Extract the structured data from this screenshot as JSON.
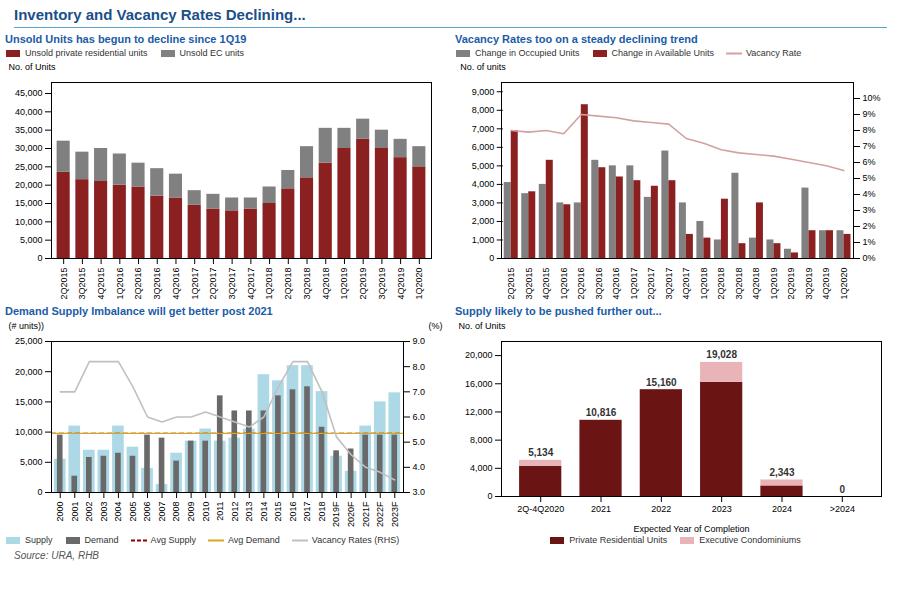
{
  "title": "Inventory and Vacancy Rates Declining...",
  "caption": "Source: URA, RHB",
  "chart_data": [
    {
      "type": "bar",
      "title": "Unsold Units has begun to decline since 1Q19",
      "stacked": true,
      "grid": false,
      "legend": "upper left",
      "ylabel": "No. of Units",
      "categories": [
        "2Q2015",
        "3Q2015",
        "4Q2015",
        "1Q2016",
        "2Q2016",
        "3Q2016",
        "4Q2016",
        "1Q2017",
        "2Q2017",
        "3Q2017",
        "4Q2017",
        "1Q2018",
        "2Q2018",
        "3Q2018",
        "4Q2018",
        "1Q2019",
        "2Q2019",
        "3Q2019",
        "4Q2019",
        "1Q2020"
      ],
      "series": [
        {
          "name": "Unsold private residential units",
          "color": "#8B2020",
          "values": [
            23500,
            21500,
            21000,
            20000,
            19500,
            17000,
            16500,
            14500,
            13500,
            13000,
            13500,
            15000,
            19000,
            22000,
            26000,
            30000,
            32500,
            30000,
            27500,
            25000
          ]
        },
        {
          "name": "Unsold EC units",
          "color": "#808080",
          "values": [
            8500,
            7500,
            9000,
            8500,
            6500,
            7500,
            6500,
            4000,
            4000,
            3500,
            3000,
            4500,
            5000,
            8500,
            9500,
            5500,
            5500,
            5000,
            5000,
            5500
          ]
        }
      ],
      "ylim": [
        0,
        48000
      ],
      "yticks": [
        0,
        {
          "value": 5000,
          "label": "5,000"
        },
        {
          "value": 10000,
          "label": "10,000"
        },
        {
          "value": 15000,
          "label": "15,000"
        },
        {
          "value": 20000,
          "label": "20,000"
        },
        {
          "value": 25000,
          "label": "25,000"
        },
        {
          "value": 30000,
          "label": "30,000"
        },
        {
          "value": 35000,
          "label": "35,000"
        },
        {
          "value": 40000,
          "label": "40,000"
        },
        {
          "value": 45000,
          "label": "45,000"
        }
      ]
    },
    {
      "type": "bar",
      "title": "Vacancy Rates too on a steady declining trend",
      "stacked": false,
      "grid": false,
      "legend": "upper left",
      "ylabel": "No. of units",
      "categories": [
        "2Q2015",
        "3Q2015",
        "4Q2015",
        "1Q2016",
        "2Q2016",
        "3Q2016",
        "4Q2016",
        "1Q2017",
        "2Q2017",
        "3Q2017",
        "4Q2017",
        "1Q2018",
        "2Q2018",
        "3Q2018",
        "4Q2018",
        "1Q2019",
        "2Q2019",
        "3Q2019",
        "4Q2019",
        "1Q2020"
      ],
      "series": [
        {
          "name": "Change in Occupied Units",
          "type": "bar",
          "color": "#808080",
          "values": [
            4100,
            3500,
            4000,
            3000,
            3000,
            5300,
            5000,
            5000,
            3300,
            5800,
            3000,
            2000,
            1000,
            4600,
            1100,
            1000,
            500,
            3800,
            1500,
            1500
          ]
        },
        {
          "name": "Change in Available Units",
          "type": "bar",
          "color": "#8B2020",
          "values": [
            6900,
            3600,
            5300,
            2900,
            8300,
            4900,
            4400,
            4200,
            3900,
            4200,
            1300,
            1100,
            3200,
            800,
            3000,
            800,
            300,
            1500,
            1500,
            1300
          ]
        },
        {
          "name": "Vacancy Rate",
          "type": "line",
          "axis": "y2",
          "color": "#D4A0A0",
          "line_style": "solid",
          "values": [
            8.0,
            7.9,
            8.0,
            7.8,
            9.0,
            8.9,
            8.8,
            8.6,
            8.5,
            8.4,
            7.5,
            7.2,
            6.8,
            6.6,
            6.5,
            6.4,
            6.2,
            6.0,
            5.8,
            5.5
          ]
        }
      ],
      "ylim": [
        0,
        9500
      ],
      "yticks": [
        0,
        {
          "value": 1000,
          "label": "1,000"
        },
        {
          "value": 2000,
          "label": "2,000"
        },
        {
          "value": 3000,
          "label": "3,000"
        },
        {
          "value": 4000,
          "label": "4,000"
        },
        {
          "value": 5000,
          "label": "5,000"
        },
        {
          "value": 6000,
          "label": "6,000"
        },
        {
          "value": 7000,
          "label": "7,000"
        },
        {
          "value": 8000,
          "label": "8,000"
        },
        {
          "value": 9000,
          "label": "9,000"
        }
      ],
      "y2lim": [
        0,
        11
      ],
      "y2ticks": [
        {
          "value": 0,
          "label": "0%"
        },
        {
          "value": 1,
          "label": "1%"
        },
        {
          "value": 2,
          "label": "2%"
        },
        {
          "value": 3,
          "label": "3%"
        },
        {
          "value": 4,
          "label": "4%"
        },
        {
          "value": 5,
          "label": "5%"
        },
        {
          "value": 6,
          "label": "6%"
        },
        {
          "value": 7,
          "label": "7%"
        },
        {
          "value": 8,
          "label": "8%"
        },
        {
          "value": 9,
          "label": "9%"
        },
        {
          "value": 10,
          "label": "10%"
        }
      ]
    },
    {
      "type": "overlaid_bar",
      "title": "Demand Supply Imbalance will get better post 2021",
      "stacked": false,
      "grid": false,
      "legend": "lower left",
      "ylabel": "(# units))",
      "y2label": "(%)",
      "categories": [
        "2000",
        "2001",
        "2002",
        "2003",
        "2004",
        "2005",
        "2006",
        "2007",
        "2008",
        "2009",
        "2010",
        "2011",
        "2012",
        "2013",
        "2014",
        "2015",
        "2016",
        "2017",
        "2018",
        "2019F",
        "2020F",
        "2021F",
        "2022F",
        "2023F"
      ],
      "series": [
        {
          "name": "Supply",
          "type": "bar",
          "color": "#ADD8E6",
          "values": [
            5500,
            11000,
            7000,
            7000,
            11000,
            7500,
            4000,
            1300,
            6500,
            8500,
            10500,
            8500,
            9000,
            10500,
            19500,
            18500,
            21000,
            21000,
            16700,
            6000,
            3500,
            11000,
            15000,
            16500
          ]
        },
        {
          "name": "Demand",
          "type": "bar",
          "color": "#696969",
          "values": [
            9500,
            2700,
            5800,
            6000,
            6500,
            6000,
            9500,
            9000,
            5200,
            8500,
            8500,
            16000,
            13500,
            13500,
            13500,
            16000,
            17000,
            17500,
            10800,
            6900,
            7200,
            9500,
            9500,
            9500
          ]
        },
        {
          "name": "Vacancy Rates (RHS)",
          "type": "line",
          "axis": "y2",
          "color": "#C0C0C0",
          "line_style": "solid",
          "values": [
            7.0,
            7.0,
            8.2,
            8.2,
            8.2,
            7.2,
            6.0,
            5.8,
            6.0,
            6.0,
            6.2,
            6.0,
            5.8,
            5.6,
            6.0,
            7.2,
            8.2,
            8.2,
            7.0,
            5.2,
            4.5,
            4.0,
            3.8,
            3.5
          ]
        }
      ],
      "reference_lines": [
        {
          "name": "Avg Supply",
          "value": 9800,
          "color": "#8B0000",
          "line_style": "dashed"
        },
        {
          "name": "Avg Demand",
          "value": 9800,
          "color": "#DAA520",
          "line_style": "solid"
        }
      ],
      "ylim": [
        0,
        25000
      ],
      "yticks": [
        0,
        {
          "value": 5000,
          "label": "5,000"
        },
        {
          "value": 10000,
          "label": "10,000"
        },
        {
          "value": 15000,
          "label": "15,000"
        },
        {
          "value": 20000,
          "label": "20,000"
        },
        {
          "value": 25000,
          "label": "25,000"
        }
      ],
      "y2lim": [
        3,
        9
      ],
      "y2ticks": [
        {
          "value": 3,
          "label": "3.0"
        },
        {
          "value": 4,
          "label": "4.0"
        },
        {
          "value": 5,
          "label": "5.0"
        },
        {
          "value": 6,
          "label": "6.0"
        },
        {
          "value": 7,
          "label": "7.0"
        },
        {
          "value": 8,
          "label": "8.0"
        },
        {
          "value": 9,
          "label": "9.0"
        }
      ]
    },
    {
      "type": "bar",
      "title": "Supply likely to be pushed further out...",
      "stacked": true,
      "grid": false,
      "legend": "lower center",
      "ylabel": "No. of Units",
      "xlabel": "Expected Year of Completion",
      "categories": [
        "2Q-4Q2020",
        "2021",
        "2022",
        "2023",
        "2024",
        ">2024"
      ],
      "series": [
        {
          "name": "Private Residential Units",
          "color": "#6B1414",
          "values": [
            4300,
            10816,
            15160,
            16200,
            1500,
            0
          ]
        },
        {
          "name": "Executive Condominiums",
          "color": "#E8B4B8",
          "values": [
            834,
            0,
            0,
            2828,
            843,
            0
          ]
        }
      ],
      "totals": [
        5134,
        10816,
        15160,
        19028,
        2343,
        0
      ],
      "total_labels": [
        "5,134",
        "10,816",
        "15,160",
        "19,028",
        "2,343",
        "0"
      ],
      "ylim": [
        0,
        22000
      ],
      "yticks": [
        0,
        {
          "value": 4000,
          "label": "4,000"
        },
        {
          "value": 8000,
          "label": "8,000"
        },
        {
          "value": 12000,
          "label": "12,000"
        },
        {
          "value": 16000,
          "label": "16,000"
        },
        {
          "value": 20000,
          "label": "20,000"
        }
      ]
    }
  ]
}
